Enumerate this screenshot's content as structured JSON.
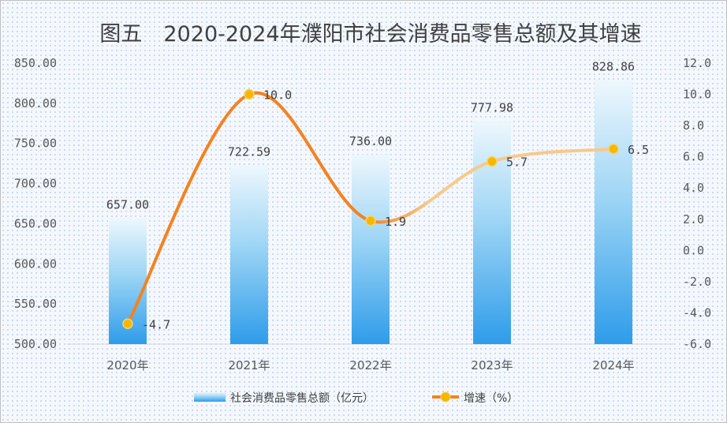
{
  "chart_data": {
    "type": "bar+line",
    "title": "图五　2020-2024年濮阳市社会消费品零售总额及其增速",
    "categories": [
      "2020年",
      "2021年",
      "2022年",
      "2023年",
      "2024年"
    ],
    "series": [
      {
        "name": "社会消费品零售总额（亿元）",
        "type": "bar",
        "axis": "left",
        "values": [
          657.0,
          722.59,
          736.0,
          777.98,
          828.86
        ],
        "labels": [
          "657.00",
          "722.59",
          "736.00",
          "777.98",
          "828.86"
        ]
      },
      {
        "name": "增速（%）",
        "type": "line",
        "axis": "right",
        "values": [
          -4.7,
          10.0,
          1.9,
          5.7,
          6.5
        ],
        "labels": [
          "-4.7",
          "10.0",
          "1.9",
          "5.7",
          "6.5"
        ]
      }
    ],
    "left_axis": {
      "min": 500,
      "max": 850,
      "ticks": [
        "500.00",
        "550.00",
        "600.00",
        "650.00",
        "700.00",
        "750.00",
        "800.00",
        "850.00"
      ]
    },
    "right_axis": {
      "min": -6,
      "max": 12,
      "ticks": [
        "-6.0",
        "-4.0",
        "-2.0",
        "0.0",
        "2.0",
        "4.0",
        "6.0",
        "8.0",
        "10.0",
        "12.0"
      ]
    },
    "legend_position": "bottom",
    "colors": {
      "bar_top": "#eef7fd",
      "bar_bottom": "#2e9cea",
      "line_strong": "#f5821f",
      "line_light": "#f7c98a",
      "marker": "#f5b800",
      "marker_edge": "#f7d36b",
      "axis": "#d9d9d9"
    }
  }
}
